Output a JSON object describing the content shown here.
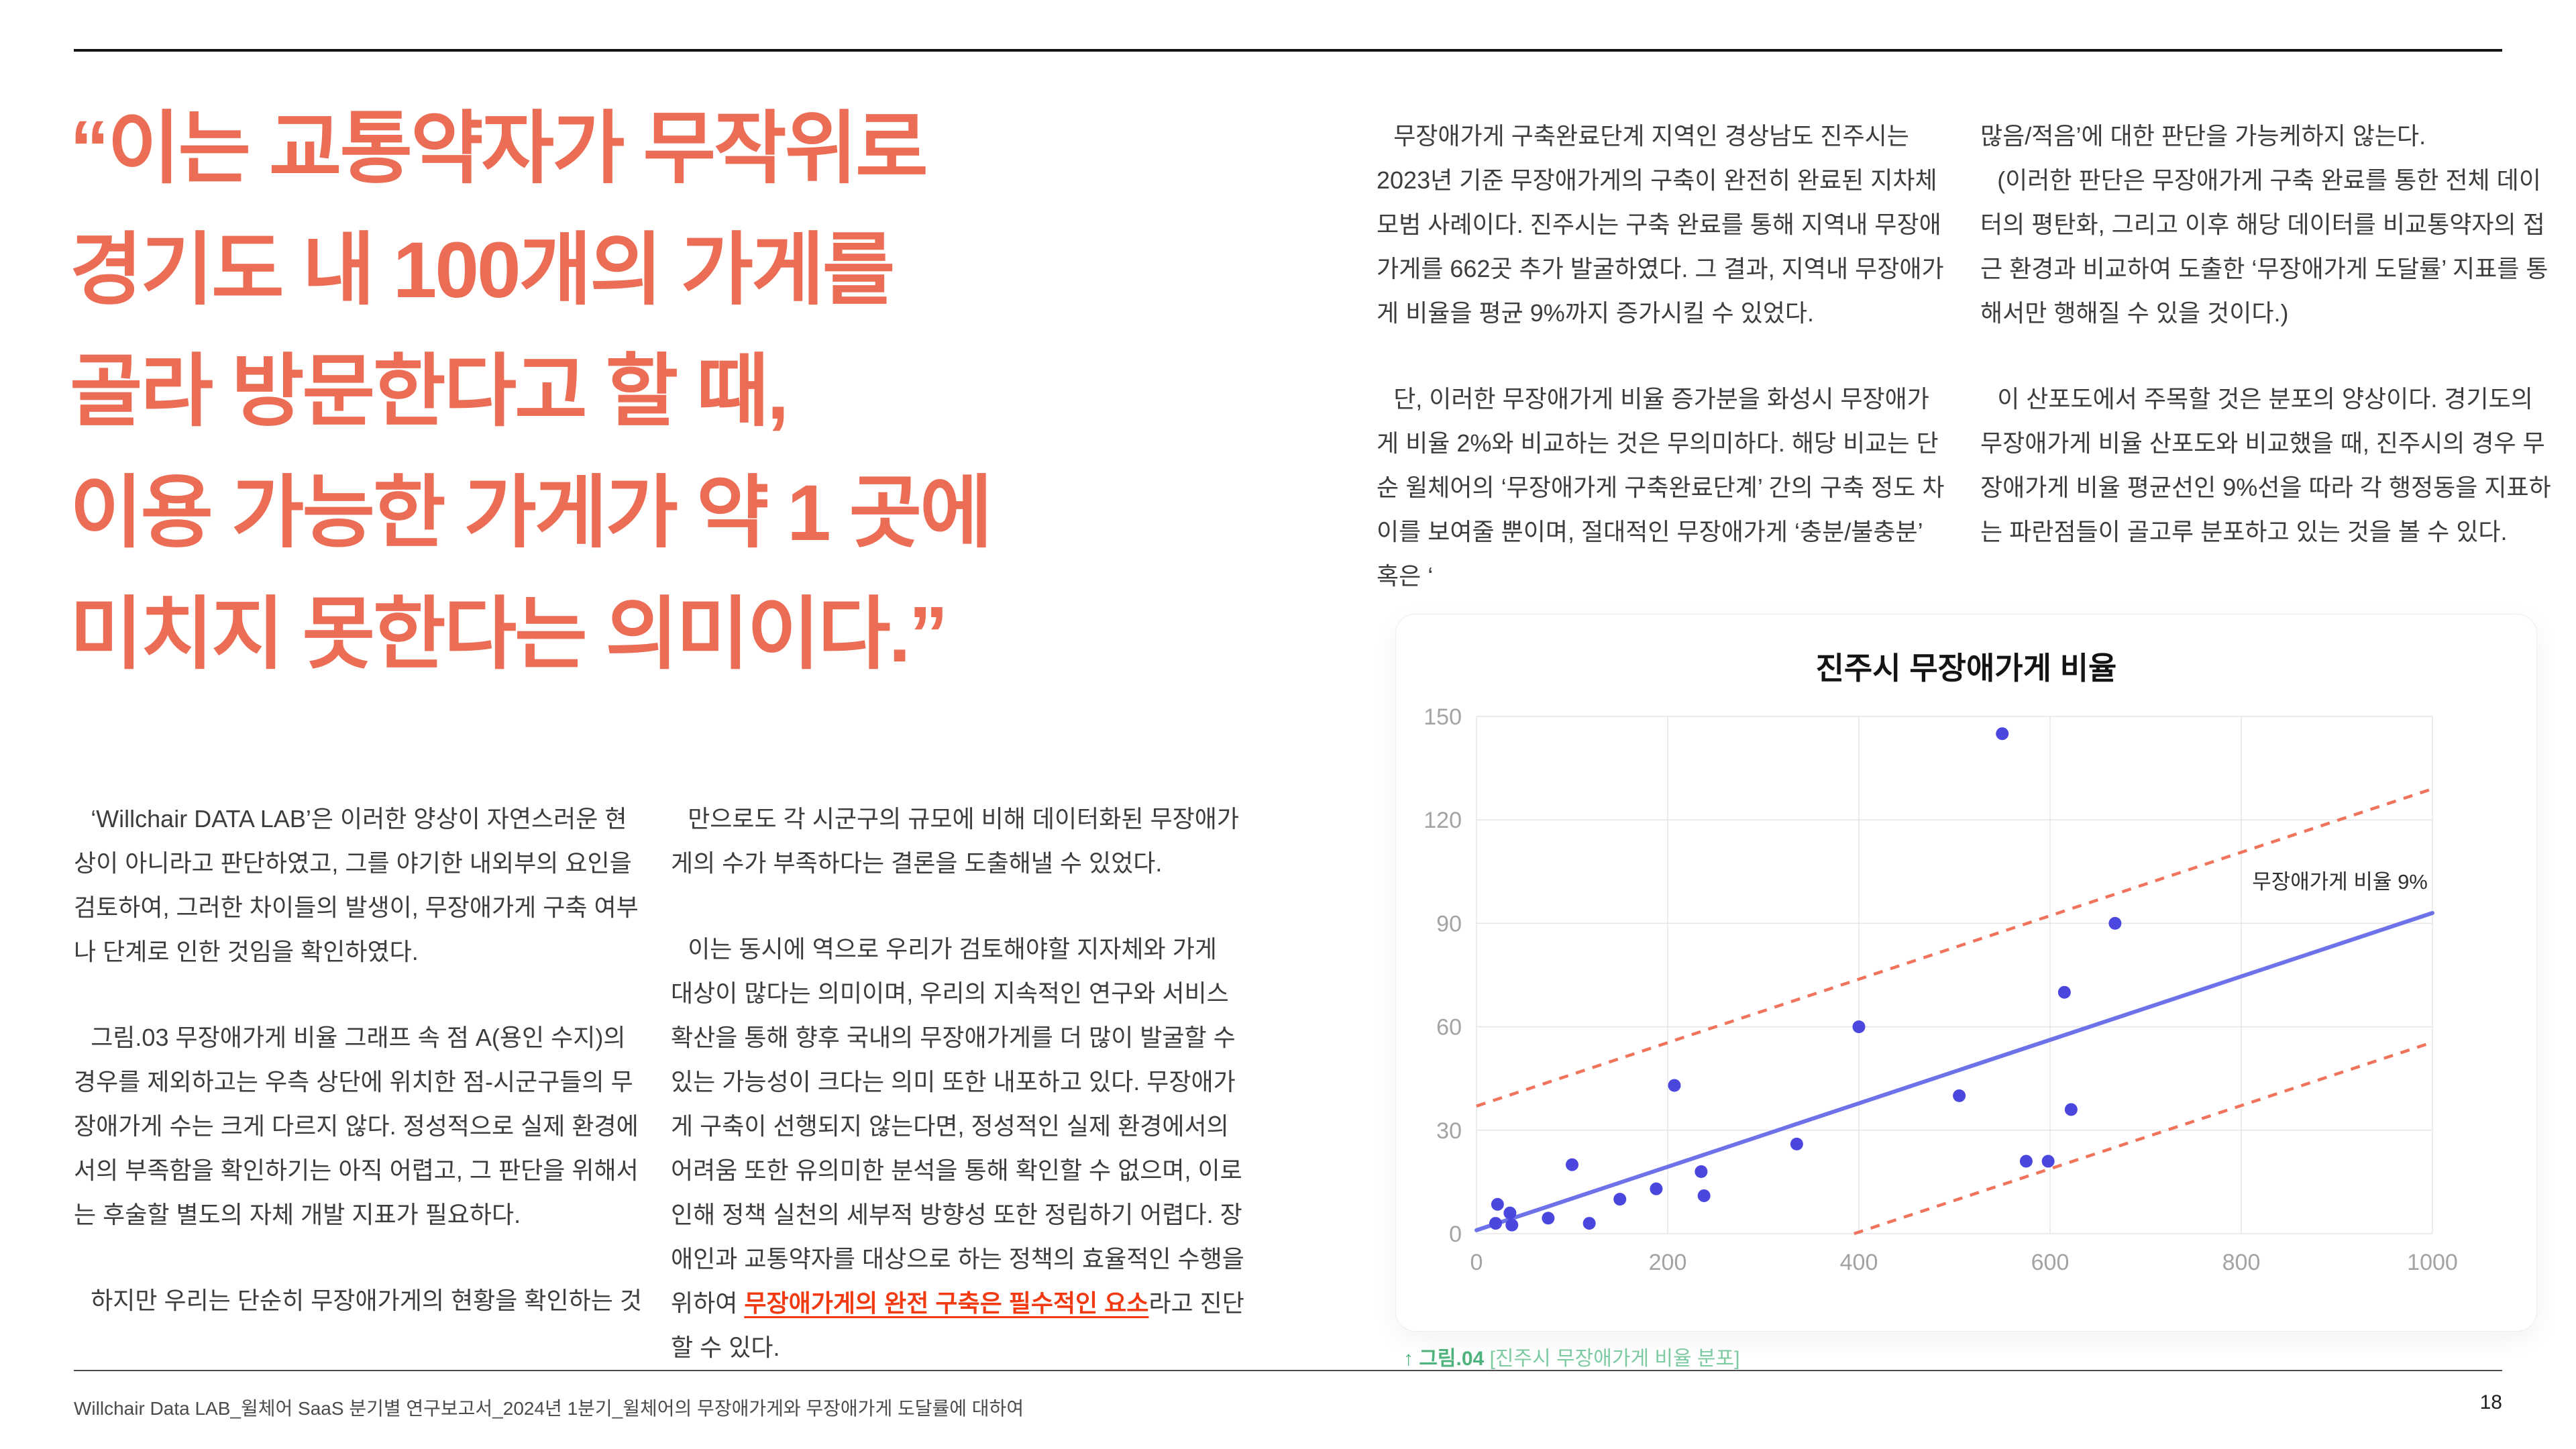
{
  "colors": {
    "quote_accent": "#ec6d55",
    "emphasis_red": "#f23a12",
    "caption_green_bold": "#4fb37d",
    "caption_green_light": "#7ecba2",
    "body_text": "#3d3d3d"
  },
  "quote": {
    "lines": [
      "“이는 교통약자가 무작위로",
      "경기도 내 100개의 가게를",
      "골라 방문한다고 할 때,",
      "이용 가능한 가게가 약 1 곳에",
      "미치지 못한다는 의미이다.”"
    ]
  },
  "columns": {
    "col1": {
      "p1": "‘Willchair DATA LAB’은 이러한 양상이 자연스러운 현상이 아니라고 판단하였고, 그를 야기한 내외부의 요인을 검토하여, 그러한 차이들의 발생이, 무장애가게 구축 여부나 단계로 인한 것임을 확인하였다.",
      "p2": "그림.03 무장애가게 비율 그래프 속 점 A(용인 수지)의 경우를 제외하고는 우측 상단에 위치한 점-시군구들의 무장애가게 수는 크게 다르지 않다. 정성적으로 실제 환경에서의 부족함을 확인하기는 아직 어렵고, 그 판단을 위해서는 후술할 별도의 자체 개발 지표가 필요하다.",
      "p3": "하지만 우리는 단순히 무장애가게의 현황을 확인하는 것"
    },
    "col2": {
      "p1": "만으로도 각 시군구의 규모에 비해 데이터화된 무장애가게의 수가 부족하다는 결론을 도출해낼 수 있었다.",
      "p2_before": "이는 동시에 역으로 우리가 검토해야할 지자체와 가게 대상이 많다는 의미이며, 우리의 지속적인 연구와 서비스 확산을 통해 향후 국내의 무장애가게를 더 많이 발굴할 수 있는 가능성이 크다는 의미 또한 내포하고 있다. 무장애가게 구축이 선행되지 않는다면, 정성적인 실제 환경에서의 어려움 또한 유의미한 분석을 통해 확인할 수 없으며, 이로 인해 정책 실천의 세부적 방향성 또한 정립하기 어렵다. 장애인과 교통약자를 대상으로 하는 정책의 효율적인 수행을 위하여 ",
      "p2_red": "무장애가게의 완전 구축은 필수적인 요소",
      "p2_after": "라고 진단할 수 있다."
    },
    "col3": {
      "p1": "무장애가게 구축완료단계 지역인 경상남도 진주시는 2023년 기준 무장애가게의 구축이 완전히 완료된 지차체 모범 사례이다. 진주시는 구축 완료를 통해 지역내 무장애가게를 662곳 추가 발굴하였다. 그 결과, 지역내 무장애가게 비율을 평균 9%까지 증가시킬 수 있었다.",
      "p2": "단, 이러한 무장애가게 비율 증가분을 화성시 무장애가게 비율 2%와 비교하는 것은 무의미하다. 해당 비교는 단순 윌체어의 ‘무장애가게 구축완료단계’ 간의 구축 정도 차이를 보여줄 뿐이며, 절대적인 무장애가게 ‘충분/불충분’ 혹은 ‘"
    },
    "col4": {
      "p1": "많음/적음’에 대한 판단을 가능케하지 않는다.",
      "p2": "(이러한 판단은 무장애가게 구축 완료를 통한 전체 데이터의 평탄화, 그리고 이후 해당 데이터를 비교통약자의 접근 환경과 비교하여 도출한 ‘무장애가게 도달률’ 지표를 통해서만 행해질 수 있을 것이다.)",
      "p3": "이 산포도에서 주목할 것은 분포의 양상이다. 경기도의 무장애가게 비율 산포도와 비교했을 때, 진주시의 경우 무장애가게 비율 평균선인 9%선을 따라 각 행정동을 지표하는 파란점들이 골고루 분포하고 있는 것을 볼 수 있다."
    }
  },
  "chart": {
    "title": "진주시 무장애가게 비율",
    "caption_prefix": "↑ 그림.04",
    "caption_text": " [진주시 무장애가게 비율 분포]"
  },
  "chart_data": {
    "type": "scatter",
    "title": "진주시 무장애가게 비율",
    "xlabel": "",
    "ylabel": "",
    "xlim": [
      0,
      1000
    ],
    "ylim": [
      0,
      150
    ],
    "x_ticks": [
      0,
      200,
      400,
      600,
      800,
      1000
    ],
    "y_ticks": [
      0,
      30,
      60,
      90,
      120,
      150
    ],
    "grid": true,
    "points": [
      [
        20,
        3
      ],
      [
        22,
        8.5
      ],
      [
        35,
        6
      ],
      [
        37,
        2.5
      ],
      [
        75,
        4.5
      ],
      [
        100,
        20
      ],
      [
        118,
        3
      ],
      [
        150,
        10
      ],
      [
        188,
        13
      ],
      [
        207,
        43
      ],
      [
        235,
        18
      ],
      [
        238,
        11
      ],
      [
        335,
        26
      ],
      [
        400,
        60
      ],
      [
        505,
        40
      ],
      [
        550,
        145
      ],
      [
        575,
        21
      ],
      [
        598,
        21
      ],
      [
        615,
        70
      ],
      [
        622,
        36
      ],
      [
        668,
        90
      ]
    ],
    "trend_line": {
      "from": [
        0,
        1
      ],
      "to": [
        1000,
        93
      ]
    },
    "annotation": {
      "text": "무장애가게 비율 9%",
      "x": 995,
      "y": 100
    },
    "bands": [
      {
        "from": [
          0,
          37
        ],
        "to": [
          1000,
          129
        ]
      },
      {
        "from": [
          395,
          0
        ],
        "to": [
          1000,
          55.5
        ]
      }
    ],
    "style": {
      "point_color": "#4a46de",
      "trend_color": "#6d72e9",
      "band_color": "#f0745c",
      "grid_color": "#e5e5e5",
      "tick_color": "#a3a3a3",
      "annotation_color": "#2f2f2f"
    }
  },
  "footer": {
    "left": "Willchair Data LAB_윌체어 SaaS 분기별 연구보고서_2024년 1분기_윌체어의 무장애가게와 무장애가게 도달률에 대하여",
    "page_number": "18"
  }
}
